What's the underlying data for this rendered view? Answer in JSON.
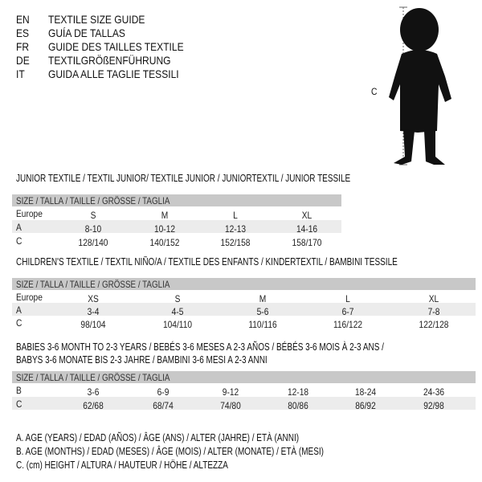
{
  "header": {
    "rows": [
      {
        "code": "EN",
        "label": "TEXTILE SIZE GUIDE"
      },
      {
        "code": "ES",
        "label": "GUÍA DE TALLAS"
      },
      {
        "code": "FR",
        "label": "GUIDE DES TAILLES TEXTILE"
      },
      {
        "code": "DE",
        "label": "TEXTILGRÖßENFÜHRUNG"
      },
      {
        "code": "IT",
        "label": "GUIDA ALLE TAGLIE TESSILI"
      }
    ],
    "figure_label": "C"
  },
  "junior": {
    "title": "JUNIOR TEXTILE / TEXTIL JUNIOR/ TEXTILE JUNIOR / JUNIORTEXTIL / JUNIOR TESSILE",
    "band": "SIZE / TALLA / TAILLE / GRÖSSE / TAGLIA",
    "rows": [
      {
        "label": "Europe",
        "values": [
          "S",
          "M",
          "L",
          "XL"
        ]
      },
      {
        "label": "A",
        "values": [
          "8-10",
          "10-12",
          "12-13",
          "14-16"
        ]
      },
      {
        "label": "C",
        "values": [
          "128/140",
          "140/152",
          "152/158",
          "158/170"
        ]
      }
    ]
  },
  "children": {
    "title": "CHILDREN'S TEXTILE / TEXTIL NIÑO/A / TEXTILE DES ENFANTS / KINDERTEXTIL / BAMBINI TESSILE",
    "band": "SIZE / TALLA / TAILLE / GRÖSSE / TAGLIA",
    "rows": [
      {
        "label": "Europe",
        "values": [
          "XS",
          "S",
          "M",
          "L",
          "XL"
        ]
      },
      {
        "label": "A",
        "values": [
          "3-4",
          "4-5",
          "5-6",
          "6-7",
          "7-8"
        ]
      },
      {
        "label": "C",
        "values": [
          "98/104",
          "104/110",
          "110/116",
          "116/122",
          "122/128"
        ]
      }
    ]
  },
  "babies": {
    "title1": "BABIES 3-6 MONTH TO 2-3 YEARS / BEBÉS 3-6 MESES A 2-3 AÑOS / BÉBÉS 3-6 MOIS À 2-3 ANS /",
    "title2": "BABYS 3-6 MONATE BIS 2-3 JAHRE / BAMBINI 3-6 MESI A 2-3 ANNI",
    "band": "SIZE / TALLA / TAILLE / GRÖSSE / TAGLIA",
    "rows": [
      {
        "label": "B",
        "values": [
          "3-6",
          "6-9",
          "9-12",
          "12-18",
          "18-24",
          "24-36"
        ]
      },
      {
        "label": "C",
        "values": [
          "62/68",
          "68/74",
          "74/80",
          "80/86",
          "86/92",
          "92/98"
        ]
      }
    ]
  },
  "legend": [
    "A. AGE (YEARS) / EDAD (AÑOS) / ÂGE (ANS) / ALTER (JAHRE) / ETÀ (ANNI)",
    "B. AGE (MONTHS) / EDAD (MESES) / ÂGE (MOIS) / ALTER (MONATE) / ETÀ (MESI)",
    "C. (cm) HEIGHT / ALTURA / HAUTEUR / HÖHE / ALTEZZA"
  ]
}
